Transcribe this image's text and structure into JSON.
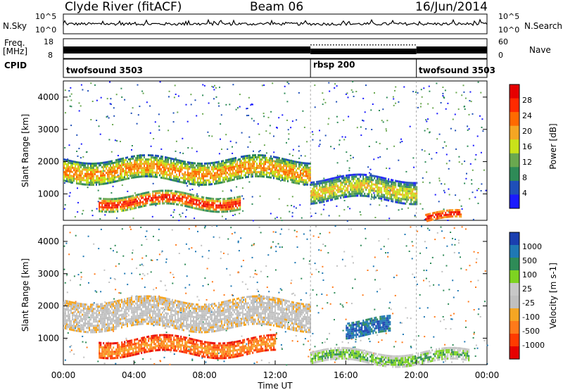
{
  "header": {
    "station": "Clyde River (fitACF)",
    "beam": "Beam 06",
    "date": "16/Jun/2014"
  },
  "panels": {
    "sky": {
      "left_label": "N.Sky",
      "right_label": "N.Search",
      "left_ticks": [
        "10^5",
        "10^0"
      ],
      "right_ticks": [
        "10^5",
        "10^0"
      ]
    },
    "freq": {
      "left_label_1": "Freq.",
      "left_label_2": "[MHz]",
      "right_label": "Nave",
      "left_ticks": [
        "18",
        "8"
      ],
      "right_ticks": [
        "60",
        "0"
      ]
    },
    "cpid": {
      "label": "CPID",
      "segments": [
        "twofsound 3503",
        "rbsp 200",
        "twofsound 3503"
      ]
    }
  },
  "colors": {
    "power_scale": [
      "#1a1aff",
      "#1f4fb8",
      "#2e8b57",
      "#6aa84f",
      "#c9e21a",
      "#f5a623",
      "#ff6a00",
      "#ff2a00",
      "#e60000"
    ],
    "velocity_scale": [
      "#e60000",
      "#ff3b00",
      "#ff7a1a",
      "#f5a623",
      "#c0c0c0",
      "#c8c8c8",
      "#7ed321",
      "#2e8b57",
      "#1f78b4",
      "#1a3fb0"
    ]
  },
  "chart_data": [
    {
      "type": "heatmap",
      "name_label": "power",
      "ylabel": "Slant Range [km]",
      "yticks": [
        "1000",
        "2000",
        "3000",
        "4000"
      ],
      "ylim": [
        180,
        4500
      ],
      "colorbar_label": "Power [dB]",
      "colorbar_ticks": [
        "4",
        "8",
        "12",
        "16",
        "20",
        "24",
        "28"
      ],
      "bands": [
        {
          "from_hour": 0,
          "to_hour": 14,
          "range_km": [
            1400,
            2100
          ],
          "level": "12-24 dB"
        },
        {
          "from_hour": 2,
          "to_hour": 10,
          "range_km": [
            600,
            1000
          ],
          "level": "16-28 dB"
        },
        {
          "from_hour": 14,
          "to_hour": 20,
          "range_km": [
            800,
            1500
          ],
          "level": "8-20 dB"
        },
        {
          "from_hour": 20.5,
          "to_hour": 22.5,
          "range_km": [
            200,
            400
          ],
          "level": "24-32 dB"
        }
      ]
    },
    {
      "type": "heatmap",
      "name_label": "velocity",
      "ylabel": "Slant Range [km]",
      "yticks": [
        "1000",
        "2000",
        "3000",
        "4000"
      ],
      "ylim": [
        180,
        4500
      ],
      "colorbar_label": "Velocity [m s-1]",
      "colorbar_ticks": [
        "1000",
        "500",
        "100",
        "25",
        "-25",
        "-100",
        "-500",
        "-1000"
      ],
      "bands": [
        {
          "from_hour": 0,
          "to_hour": 14,
          "range_km": [
            1300,
            2200
          ],
          "level": "-25 to 25 m/s"
        },
        {
          "from_hour": 2,
          "to_hour": 12,
          "range_km": [
            500,
            1000
          ],
          "level": "-100 to -500 m/s"
        },
        {
          "from_hour": 16,
          "to_hour": 18.5,
          "range_km": [
            1100,
            1600
          ],
          "level": "500 to 1000 m/s"
        },
        {
          "from_hour": 14,
          "to_hour": 23,
          "range_km": [
            250,
            600
          ],
          "level": "25 to 100 m/s"
        }
      ]
    }
  ],
  "xaxis": {
    "label": "Time UT",
    "ticks": [
      "00:00",
      "04:00",
      "08:00",
      "12:00",
      "16:00",
      "20:00",
      "00:00"
    ]
  }
}
